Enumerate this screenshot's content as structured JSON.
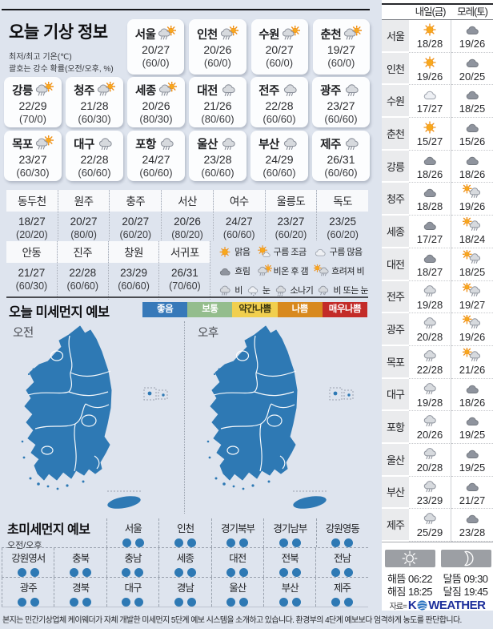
{
  "page": {
    "title": "오늘 기상 정보",
    "subtitle1": "최저/최고 기온(℃)",
    "subtitle2": "괄호는 강수 확률(오전/오후, %)",
    "footnote": "본지는 민간기상업체 케이웨더가 자체 개발한 미세먼지 5단계 예보 시스템을 소개하고 있습니다. 환경부의 4단계 예보보다 엄격하게 농도를 판단합니다.",
    "source_label": "자료=",
    "logo_k": "K",
    "logo_weather": "WEATHER",
    "logo_color": "#1d2f9b"
  },
  "today": {
    "row1": [
      {
        "name": "서울",
        "icon": "rain-then-sun",
        "temp": "20/27",
        "rain": "(60/0)"
      },
      {
        "name": "인천",
        "icon": "rain-then-sun",
        "temp": "20/26",
        "rain": "(60/0)"
      },
      {
        "name": "수원",
        "icon": "rain-then-sun",
        "temp": "20/27",
        "rain": "(60/0)"
      },
      {
        "name": "춘천",
        "icon": "rain-then-sun",
        "temp": "19/27",
        "rain": "(60/0)"
      }
    ],
    "row2": [
      {
        "name": "강릉",
        "icon": "rain-then-sun",
        "temp": "22/29",
        "rain": "(70/0)"
      },
      {
        "name": "청주",
        "icon": "rain-then-sun",
        "temp": "21/28",
        "rain": "(60/30)"
      },
      {
        "name": "세종",
        "icon": "rain-then-sun",
        "temp": "20/26",
        "rain": "(80/30)"
      },
      {
        "name": "대전",
        "icon": "rain",
        "temp": "21/26",
        "rain": "(80/60)"
      },
      {
        "name": "전주",
        "icon": "rain",
        "temp": "22/28",
        "rain": "(60/60)"
      },
      {
        "name": "광주",
        "icon": "rain",
        "temp": "23/27",
        "rain": "(60/60)"
      }
    ],
    "row3": [
      {
        "name": "목포",
        "icon": "rain-then-sun",
        "temp": "23/27",
        "rain": "(60/30)"
      },
      {
        "name": "대구",
        "icon": "rain",
        "temp": "22/28",
        "rain": "(60/60)"
      },
      {
        "name": "포항",
        "icon": "rain",
        "temp": "24/27",
        "rain": "(60/60)"
      },
      {
        "name": "울산",
        "icon": "rain",
        "temp": "23/28",
        "rain": "(60/60)"
      },
      {
        "name": "부산",
        "icon": "rain",
        "temp": "24/29",
        "rain": "(60/60)"
      },
      {
        "name": "제주",
        "icon": "rain",
        "temp": "26/31",
        "rain": "(60/60)"
      }
    ]
  },
  "extra": {
    "row1": [
      {
        "name": "동두천",
        "temp": "18/27",
        "rain": "(20/20)"
      },
      {
        "name": "원주",
        "temp": "20/27",
        "rain": "(80/0)"
      },
      {
        "name": "충주",
        "temp": "20/27",
        "rain": "(60/20)"
      },
      {
        "name": "서산",
        "temp": "20/26",
        "rain": "(80/20)"
      },
      {
        "name": "여수",
        "temp": "24/27",
        "rain": "(60/60)"
      },
      {
        "name": "울릉도",
        "temp": "23/27",
        "rain": "(60/20)"
      },
      {
        "name": "독도",
        "temp": "23/25",
        "rain": "(60/20)"
      }
    ],
    "row2": [
      {
        "name": "안동",
        "temp": "21/27",
        "rain": "(60/30)"
      },
      {
        "name": "진주",
        "temp": "22/28",
        "rain": "(60/60)"
      },
      {
        "name": "창원",
        "temp": "23/29",
        "rain": "(60/60)"
      },
      {
        "name": "서귀포",
        "temp": "26/31",
        "rain": "(70/60)"
      }
    ]
  },
  "icon_legend": {
    "row1": [
      {
        "icon": "sun",
        "label": "맑음"
      },
      {
        "icon": "sun-cloud",
        "label": "구름 조금"
      },
      {
        "icon": "cloud-light",
        "label": "구름 많음"
      }
    ],
    "row2": [
      {
        "icon": "cloud-dark",
        "label": "흐림"
      },
      {
        "icon": "rain-then-sun",
        "label": "비온 후 갬"
      },
      {
        "icon": "sun-then-rain",
        "label": "흐려져 비"
      }
    ],
    "row3": [
      {
        "icon": "rain",
        "label": "비"
      },
      {
        "icon": "snow",
        "label": "눈"
      },
      {
        "icon": "shower",
        "label": "소나기"
      },
      {
        "icon": "rain-or-snow",
        "label": "비 또는 눈"
      }
    ]
  },
  "dust": {
    "title": "오늘 미세먼지 예보",
    "am_label": "오전",
    "pm_label": "오후",
    "map_color": "#2e79b4",
    "levels": [
      {
        "label": "좋음",
        "bg": "#3779b9",
        "fg": "#ffffff"
      },
      {
        "label": "보통",
        "bg": "#94bd8d",
        "fg": "#ffffff"
      },
      {
        "label": "약간나쁨",
        "bg": "#f1cf4f",
        "fg": "#33300e"
      },
      {
        "label": "나쁨",
        "bg": "#d8891e",
        "fg": "#ffffff"
      },
      {
        "label": "매우나쁨",
        "bg": "#c32b28",
        "fg": "#ffffff"
      }
    ]
  },
  "ultrafine": {
    "title": "초미세먼지 예보",
    "subtitle": "오전/오후",
    "level_color": "#2e79b4",
    "row1": [
      {
        "name": "서울"
      },
      {
        "name": "인천"
      },
      {
        "name": "경기북부"
      },
      {
        "name": "경기남부"
      },
      {
        "name": "강원영동"
      }
    ],
    "row2": [
      {
        "name": "강원영서"
      },
      {
        "name": "충북"
      },
      {
        "name": "충남"
      },
      {
        "name": "세종"
      },
      {
        "name": "대전"
      },
      {
        "name": "전북"
      },
      {
        "name": "전남"
      }
    ],
    "row3": [
      {
        "name": "광주"
      },
      {
        "name": "경북"
      },
      {
        "name": "대구"
      },
      {
        "name": "경남"
      },
      {
        "name": "울산"
      },
      {
        "name": "부산"
      },
      {
        "name": "제주"
      }
    ]
  },
  "sidebar": {
    "col_tomorrow": "내일(금)",
    "col_dayafter": "모레(토)",
    "rows": [
      {
        "city": "서울",
        "d1_icon": "sun",
        "d1_temp": "18/28",
        "d2_icon": "cloud-dark",
        "d2_temp": "19/26"
      },
      {
        "city": "인천",
        "d1_icon": "sun",
        "d1_temp": "19/26",
        "d2_icon": "cloud-dark",
        "d2_temp": "20/25"
      },
      {
        "city": "수원",
        "d1_icon": "cloud-light",
        "d1_temp": "17/27",
        "d2_icon": "cloud-dark",
        "d2_temp": "18/25"
      },
      {
        "city": "춘천",
        "d1_icon": "sun",
        "d1_temp": "15/27",
        "d2_icon": "cloud-dark",
        "d2_temp": "15/26"
      },
      {
        "city": "강릉",
        "d1_icon": "cloud-dark",
        "d1_temp": "18/26",
        "d2_icon": "cloud-dark",
        "d2_temp": "18/26"
      },
      {
        "city": "청주",
        "d1_icon": "cloud-dark",
        "d1_temp": "18/28",
        "d2_icon": "sun-then-rain",
        "d2_temp": "19/26"
      },
      {
        "city": "세종",
        "d1_icon": "cloud-dark",
        "d1_temp": "17/27",
        "d2_icon": "sun-then-rain",
        "d2_temp": "18/24"
      },
      {
        "city": "대전",
        "d1_icon": "cloud-dark",
        "d1_temp": "18/27",
        "d2_icon": "sun-then-rain",
        "d2_temp": "18/25"
      },
      {
        "city": "전주",
        "d1_icon": "rain",
        "d1_temp": "19/28",
        "d2_icon": "sun-then-rain",
        "d2_temp": "19/27"
      },
      {
        "city": "광주",
        "d1_icon": "rain",
        "d1_temp": "20/28",
        "d2_icon": "sun-then-rain",
        "d2_temp": "19/26"
      },
      {
        "city": "목포",
        "d1_icon": "rain",
        "d1_temp": "22/28",
        "d2_icon": "sun-then-rain",
        "d2_temp": "21/26"
      },
      {
        "city": "대구",
        "d1_icon": "rain",
        "d1_temp": "19/28",
        "d2_icon": "cloud-dark",
        "d2_temp": "18/26"
      },
      {
        "city": "포항",
        "d1_icon": "rain",
        "d1_temp": "20/26",
        "d2_icon": "cloud-dark",
        "d2_temp": "19/25"
      },
      {
        "city": "울산",
        "d1_icon": "rain",
        "d1_temp": "20/28",
        "d2_icon": "cloud-dark",
        "d2_temp": "19/25"
      },
      {
        "city": "부산",
        "d1_icon": "rain",
        "d1_temp": "23/29",
        "d2_icon": "cloud-dark",
        "d2_temp": "21/27"
      },
      {
        "city": "제주",
        "d1_icon": "rain",
        "d1_temp": "25/29",
        "d2_icon": "cloud-dark",
        "d2_temp": "23/28"
      }
    ]
  },
  "sun_moon": {
    "sunrise_label": "해뜸",
    "sunrise_time": "06:22",
    "sunset_label": "해짐",
    "sunset_time": "18:25",
    "moonrise_label": "달뜸",
    "moonrise_time": "09:30",
    "moonset_label": "달짐",
    "moonset_time": "19:45"
  }
}
